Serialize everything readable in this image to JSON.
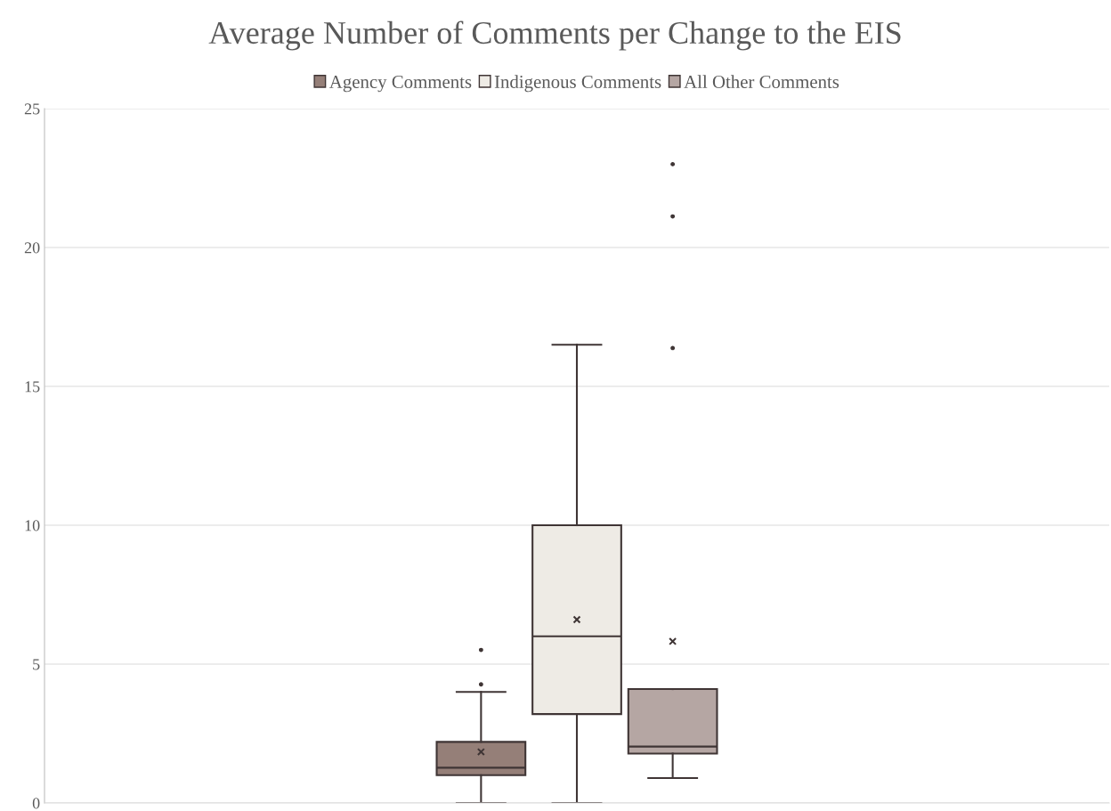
{
  "chart_data": {
    "type": "box",
    "title": "Average Number of Comments per Change to the EIS",
    "categories": [
      null
    ],
    "series": [
      {
        "name": "Agency Comments",
        "color": "#957f78",
        "boxes": [
          {
            "low": 0,
            "q1": 1.0,
            "median": 1.27,
            "q3": 2.2,
            "high": 4.0,
            "mean": 1.84,
            "outliers": [
              4.27,
              5.51
            ]
          }
        ]
      },
      {
        "name": "Indigenous Comments",
        "color": "#eeebe5",
        "boxes": [
          {
            "low": 0,
            "q1": 3.2,
            "median": 6.0,
            "q3": 10.0,
            "high": 16.5,
            "mean": 6.6
          }
        ]
      },
      {
        "name": "All Other Comments",
        "color": "#b5a6a3",
        "boxes": [
          {
            "low": 0.9,
            "q1": 1.78,
            "median": 2.03,
            "q3": 4.1,
            "high": 4.1,
            "mean": 5.82,
            "outliers": [
              16.38,
              21.12,
              23.0
            ]
          }
        ]
      }
    ],
    "ylim": [
      0,
      25
    ],
    "yticks": [
      0,
      5,
      10,
      15,
      20,
      25
    ],
    "grid": "y",
    "legend": "top"
  }
}
